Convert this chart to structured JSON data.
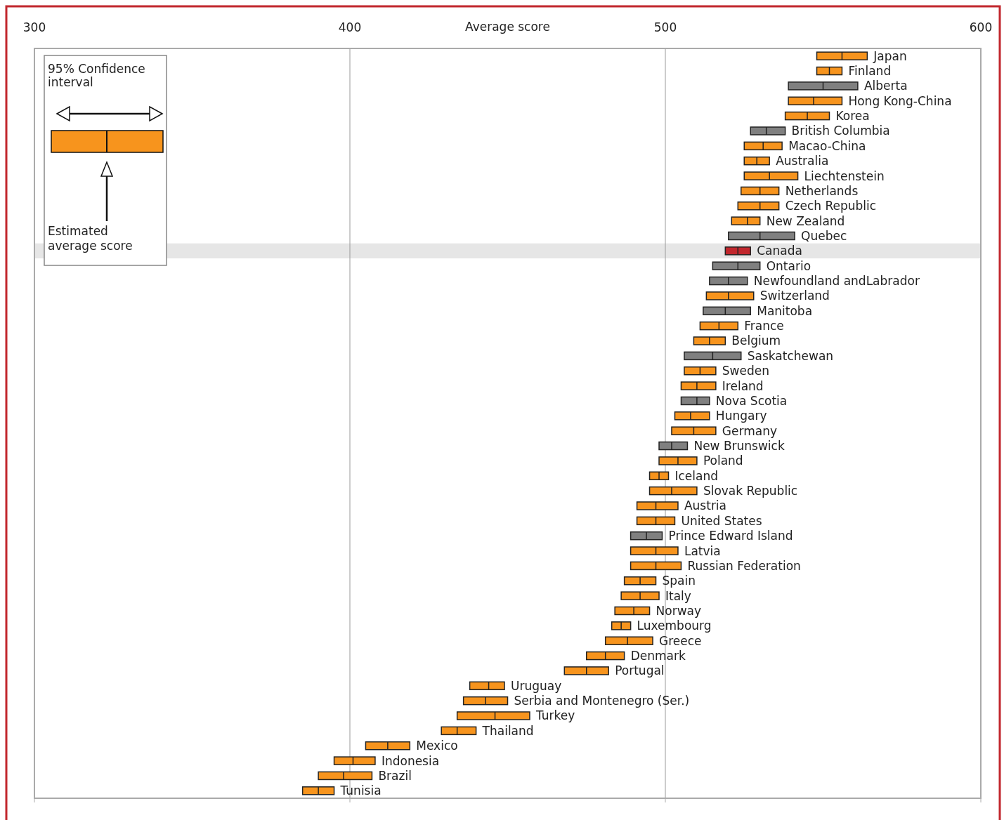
{
  "chart_data": {
    "type": "box",
    "orientation": "horizontal",
    "xlabel": "Average score",
    "xlim": [
      300,
      600
    ],
    "xticks": [
      300,
      400,
      500,
      600
    ],
    "grid": "x",
    "categories": [
      "Japan",
      "Finland",
      "Alberta",
      "Hong Kong-China",
      "Korea",
      "British Columbia",
      "Macao-China",
      "Australia",
      "Liechtenstein",
      "Netherlands",
      "Czech Republic",
      "New Zealand",
      "Quebec",
      "Canada",
      "Ontario",
      "Newfoundland andLabrador",
      "Switzerland",
      "Manitoba",
      "France",
      "Belgium",
      "Saskatchewan",
      "Sweden",
      "Ireland",
      "Nova Scotia",
      "Hungary",
      "Germany",
      "New Brunswick",
      "Poland",
      "Iceland",
      "Slovak Republic",
      "Austria",
      "United States",
      "Prince Edward Island",
      "Latvia",
      "Russian Federation",
      "Spain",
      "Italy",
      "Norway",
      "Luxembourg",
      "Greece",
      "Denmark",
      "Portugal",
      "Uruguay",
      "Serbia and Montenegro (Ser.)",
      "Turkey",
      "Thailand",
      "Mexico",
      "Indonesia",
      "Brazil",
      "Tunisia"
    ],
    "boxes": [
      {
        "low": 548,
        "q1": 548,
        "median": 556,
        "q3": 564,
        "high": 564
      },
      {
        "low": 548,
        "q1": 548,
        "median": 552,
        "q3": 556,
        "high": 556
      },
      {
        "low": 539,
        "q1": 539,
        "median": 550,
        "q3": 561,
        "high": 561
      },
      {
        "low": 539,
        "q1": 539,
        "median": 547,
        "q3": 556,
        "high": 556
      },
      {
        "low": 538,
        "q1": 538,
        "median": 545,
        "q3": 552,
        "high": 552
      },
      {
        "low": 527,
        "q1": 527,
        "median": 532,
        "q3": 538,
        "high": 538
      },
      {
        "low": 525,
        "q1": 525,
        "median": 531,
        "q3": 537,
        "high": 537
      },
      {
        "low": 525,
        "q1": 525,
        "median": 529,
        "q3": 533,
        "high": 533
      },
      {
        "low": 525,
        "q1": 525,
        "median": 533,
        "q3": 542,
        "high": 542
      },
      {
        "low": 524,
        "q1": 524,
        "median": 530,
        "q3": 536,
        "high": 536
      },
      {
        "low": 523,
        "q1": 523,
        "median": 530,
        "q3": 536,
        "high": 536
      },
      {
        "low": 521,
        "q1": 521,
        "median": 526,
        "q3": 530,
        "high": 530
      },
      {
        "low": 520,
        "q1": 520,
        "median": 530,
        "q3": 541,
        "high": 541
      },
      {
        "low": 519,
        "q1": 519,
        "median": 523,
        "q3": 527,
        "high": 527
      },
      {
        "low": 515,
        "q1": 515,
        "median": 523,
        "q3": 530,
        "high": 530
      },
      {
        "low": 514,
        "q1": 514,
        "median": 520,
        "q3": 526,
        "high": 526
      },
      {
        "low": 513,
        "q1": 513,
        "median": 520,
        "q3": 528,
        "high": 528
      },
      {
        "low": 512,
        "q1": 512,
        "median": 519,
        "q3": 527,
        "high": 527
      },
      {
        "low": 511,
        "q1": 511,
        "median": 517,
        "q3": 523,
        "high": 523
      },
      {
        "low": 509,
        "q1": 509,
        "median": 514,
        "q3": 519,
        "high": 519
      },
      {
        "low": 506,
        "q1": 506,
        "median": 515,
        "q3": 524,
        "high": 524
      },
      {
        "low": 506,
        "q1": 506,
        "median": 511,
        "q3": 516,
        "high": 516
      },
      {
        "low": 505,
        "q1": 505,
        "median": 510,
        "q3": 516,
        "high": 516
      },
      {
        "low": 505,
        "q1": 505,
        "median": 510,
        "q3": 514,
        "high": 514
      },
      {
        "low": 503,
        "q1": 503,
        "median": 508,
        "q3": 514,
        "high": 514
      },
      {
        "low": 502,
        "q1": 502,
        "median": 509,
        "q3": 516,
        "high": 516
      },
      {
        "low": 498,
        "q1": 498,
        "median": 502,
        "q3": 507,
        "high": 507
      },
      {
        "low": 498,
        "q1": 498,
        "median": 504,
        "q3": 510,
        "high": 510
      },
      {
        "low": 495,
        "q1": 495,
        "median": 498,
        "q3": 501,
        "high": 501
      },
      {
        "low": 495,
        "q1": 495,
        "median": 502,
        "q3": 510,
        "high": 510
      },
      {
        "low": 491,
        "q1": 491,
        "median": 497,
        "q3": 504,
        "high": 504
      },
      {
        "low": 491,
        "q1": 491,
        "median": 497,
        "q3": 503,
        "high": 503
      },
      {
        "low": 489,
        "q1": 489,
        "median": 494,
        "q3": 499,
        "high": 499
      },
      {
        "low": 489,
        "q1": 489,
        "median": 497,
        "q3": 504,
        "high": 504
      },
      {
        "low": 489,
        "q1": 489,
        "median": 497,
        "q3": 505,
        "high": 505
      },
      {
        "low": 487,
        "q1": 487,
        "median": 492,
        "q3": 497,
        "high": 497
      },
      {
        "low": 486,
        "q1": 486,
        "median": 492,
        "q3": 498,
        "high": 498
      },
      {
        "low": 484,
        "q1": 484,
        "median": 490,
        "q3": 495,
        "high": 495
      },
      {
        "low": 483,
        "q1": 483,
        "median": 486,
        "q3": 489,
        "high": 489
      },
      {
        "low": 481,
        "q1": 481,
        "median": 488,
        "q3": 496,
        "high": 496
      },
      {
        "low": 475,
        "q1": 475,
        "median": 481,
        "q3": 487,
        "high": 487
      },
      {
        "low": 468,
        "q1": 468,
        "median": 475,
        "q3": 482,
        "high": 482
      },
      {
        "low": 438,
        "q1": 438,
        "median": 444,
        "q3": 449,
        "high": 449
      },
      {
        "low": 436,
        "q1": 436,
        "median": 443,
        "q3": 450,
        "high": 450
      },
      {
        "low": 434,
        "q1": 434,
        "median": 446,
        "q3": 457,
        "high": 457
      },
      {
        "low": 429,
        "q1": 429,
        "median": 434,
        "q3": 440,
        "high": 440
      },
      {
        "low": 405,
        "q1": 405,
        "median": 412,
        "q3": 419,
        "high": 419
      },
      {
        "low": 395,
        "q1": 395,
        "median": 401,
        "q3": 408,
        "high": 408
      },
      {
        "low": 390,
        "q1": 390,
        "median": 398,
        "q3": 407,
        "high": 407
      },
      {
        "low": 385,
        "q1": 385,
        "median": 390,
        "q3": 395,
        "high": 395
      }
    ],
    "colors": [
      "#f7941d",
      "#f7941d",
      "#808080",
      "#f7941d",
      "#f7941d",
      "#808080",
      "#f7941d",
      "#f7941d",
      "#f7941d",
      "#f7941d",
      "#f7941d",
      "#f7941d",
      "#808080",
      "#c1272d",
      "#808080",
      "#808080",
      "#f7941d",
      "#808080",
      "#f7941d",
      "#f7941d",
      "#808080",
      "#f7941d",
      "#f7941d",
      "#808080",
      "#f7941d",
      "#f7941d",
      "#808080",
      "#f7941d",
      "#f7941d",
      "#f7941d",
      "#f7941d",
      "#f7941d",
      "#808080",
      "#f7941d",
      "#f7941d",
      "#f7941d",
      "#f7941d",
      "#f7941d",
      "#f7941d",
      "#f7941d",
      "#f7941d",
      "#f7941d",
      "#f7941d",
      "#f7941d",
      "#f7941d",
      "#f7941d",
      "#f7941d",
      "#f7941d",
      "#f7941d",
      "#f7941d"
    ],
    "bands": [
      {
        "axis": "y",
        "from": "Canada",
        "to": "Canada",
        "color": "#e6e6e6"
      }
    ],
    "annotations": [
      "95% Confidence interval",
      "Estimated average score"
    ]
  }
}
